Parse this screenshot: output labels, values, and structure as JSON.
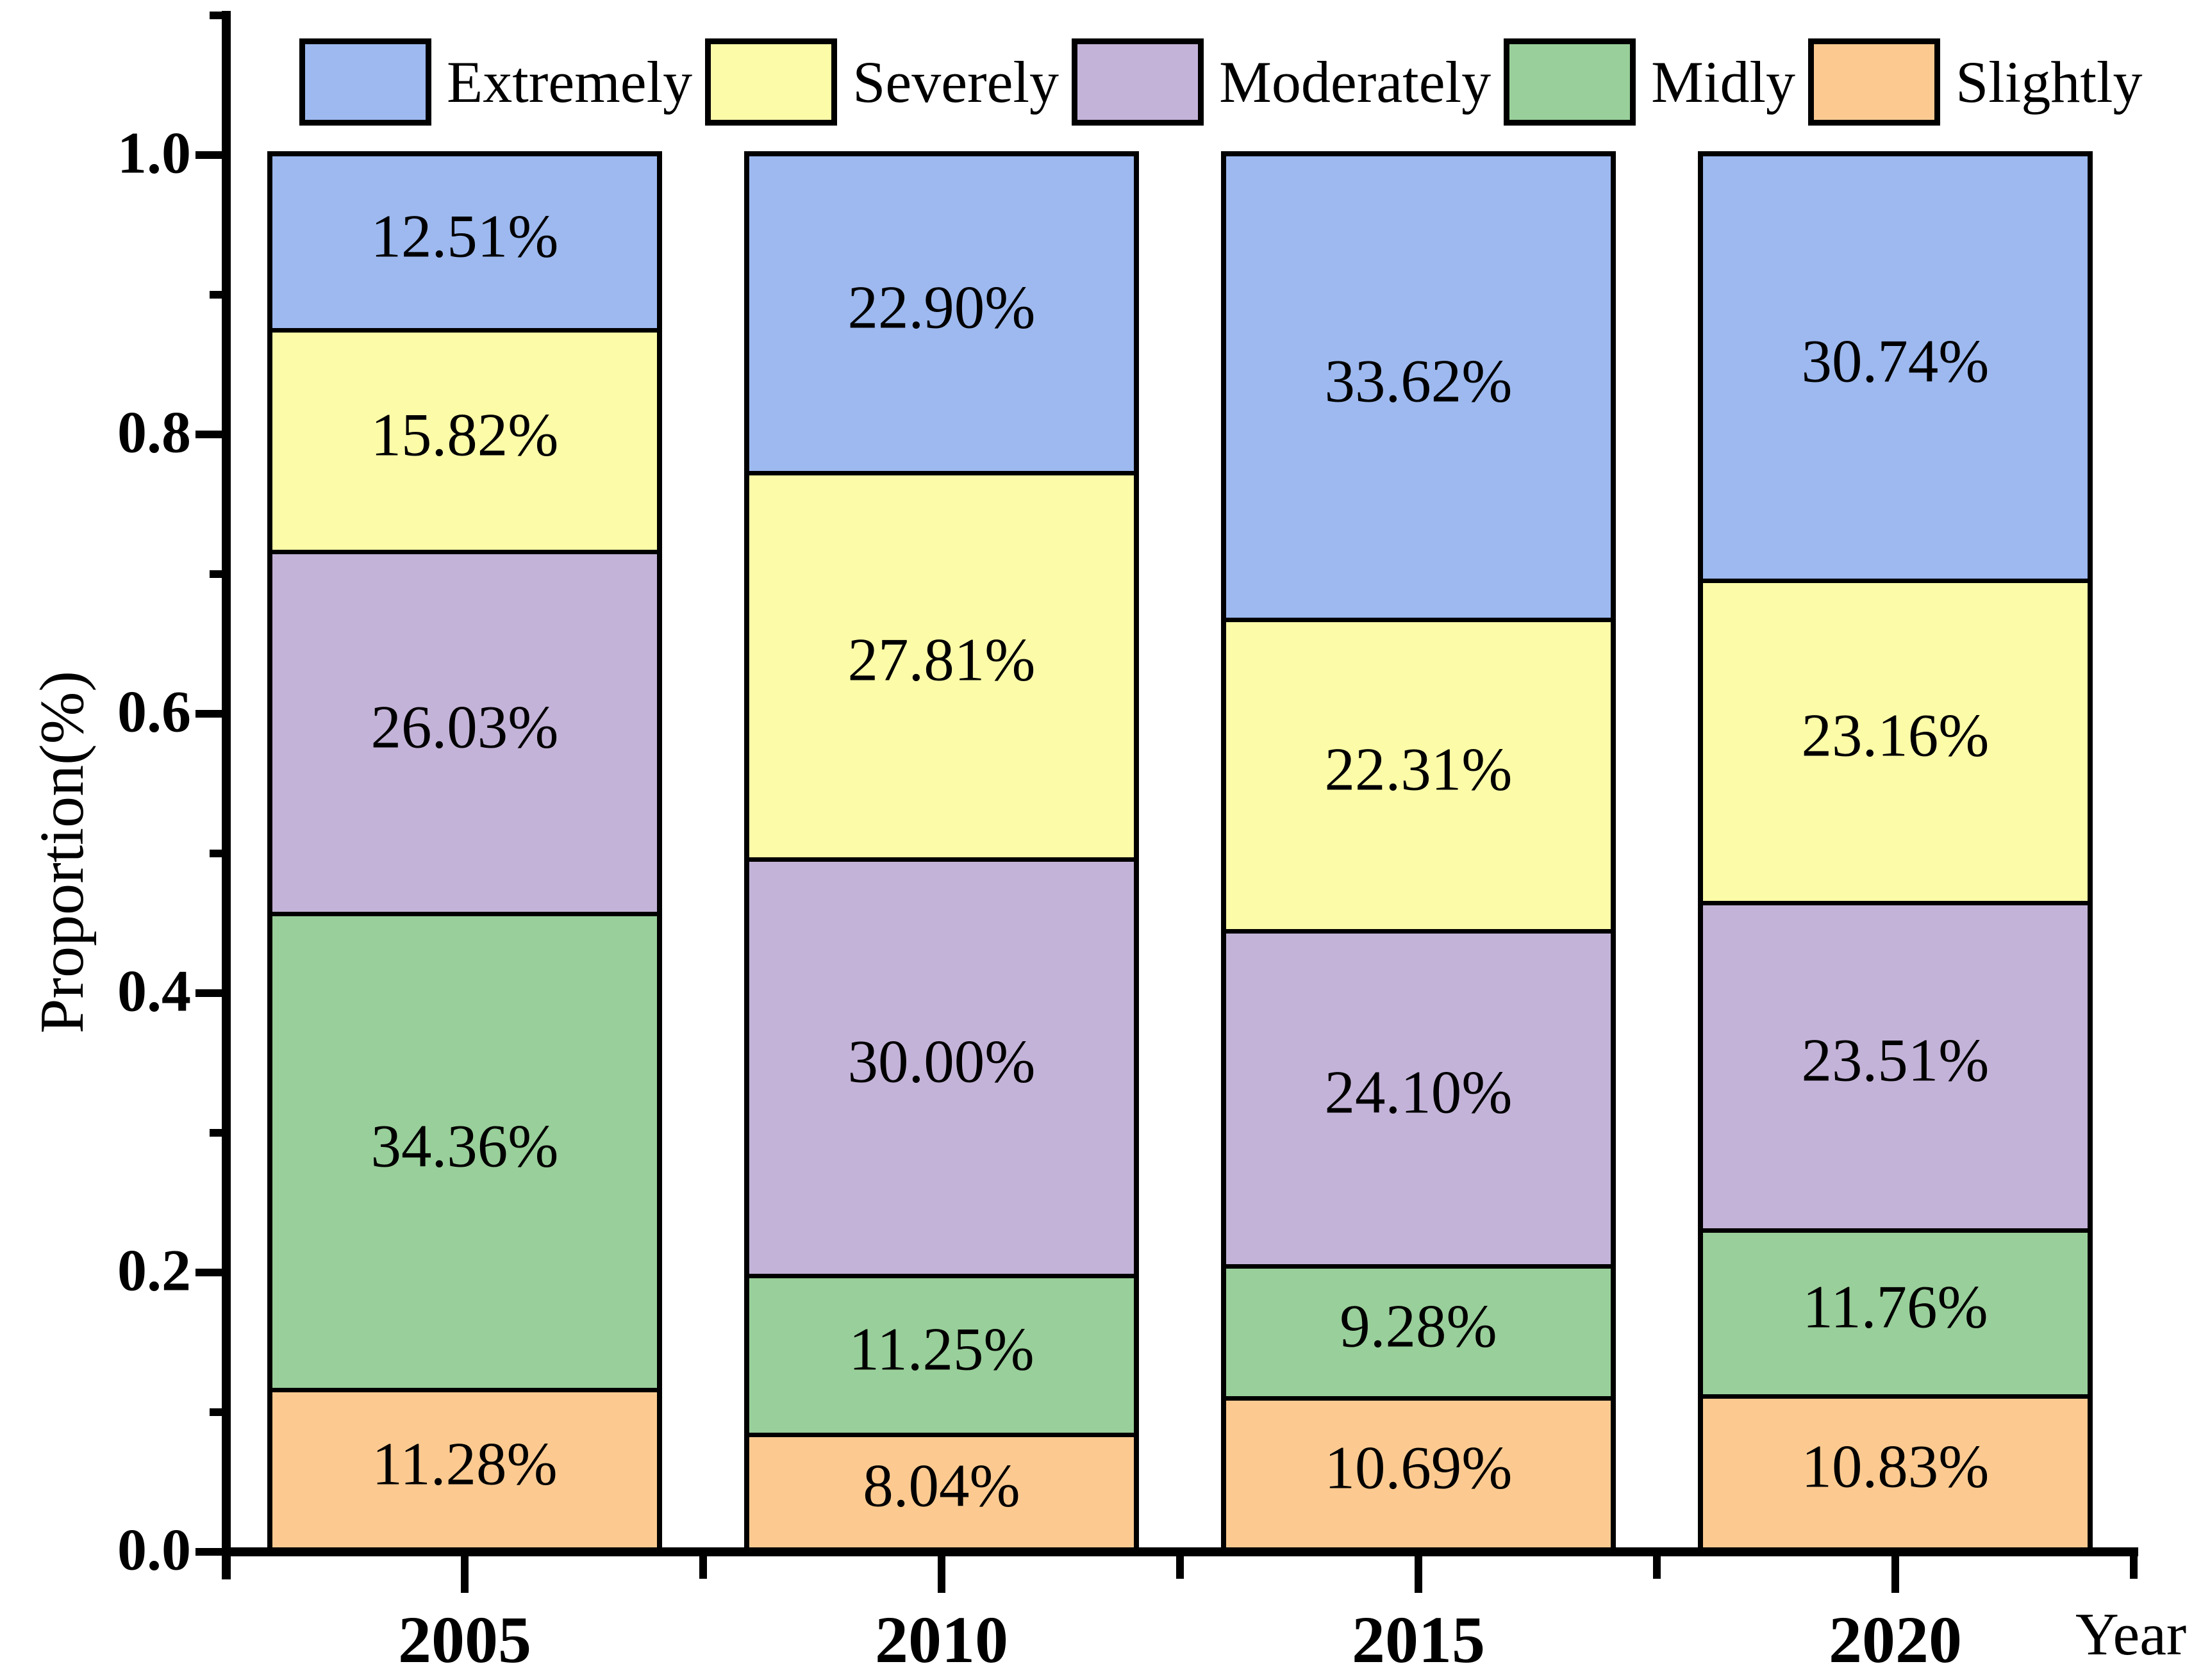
{
  "chart_data": {
    "type": "bar",
    "stacked": true,
    "orientation": "vertical",
    "categories": [
      "2005",
      "2010",
      "2015",
      "2020"
    ],
    "series": [
      {
        "name": "Extremely",
        "color": "#9db9ef",
        "values": [
          12.51,
          22.9,
          33.62,
          30.74
        ],
        "labels": [
          "12.51%",
          "22.90%",
          "33.62%",
          "30.74%"
        ]
      },
      {
        "name": "Severely",
        "color": "#fbfba8",
        "values": [
          15.82,
          27.81,
          22.31,
          23.16
        ],
        "labels": [
          "15.82%",
          "27.81%",
          "22.31%",
          "23.16%"
        ]
      },
      {
        "name": "Moderately",
        "color": "#c4b3d8",
        "values": [
          26.03,
          30.0,
          24.1,
          23.51
        ],
        "labels": [
          "26.03%",
          "30.00%",
          "24.10%",
          "23.51%"
        ]
      },
      {
        "name": "Midly",
        "color": "#99cf9a",
        "values": [
          34.36,
          11.25,
          9.28,
          11.76
        ],
        "labels": [
          "34.36%",
          "11.25%",
          "9.28%",
          "11.76%"
        ]
      },
      {
        "name": "Slightly",
        "color": "#fcca90",
        "values": [
          11.28,
          8.04,
          10.69,
          10.83
        ],
        "labels": [
          "11.28%",
          "8.04%",
          "10.69%",
          "10.83%"
        ]
      }
    ],
    "xlabel": "Year",
    "ylabel": "Proportion(%)",
    "ylim": [
      0,
      1.1
    ],
    "y_major_ticks": [
      {
        "value": 0.0,
        "label": "0.0"
      },
      {
        "value": 0.2,
        "label": "0.2"
      },
      {
        "value": 0.4,
        "label": "0.4"
      },
      {
        "value": 0.6,
        "label": "0.6"
      },
      {
        "value": 0.8,
        "label": "0.8"
      },
      {
        "value": 1.0,
        "label": "1.0"
      }
    ],
    "y_minor_tick_values": [
      0.1,
      0.3,
      0.5,
      0.7,
      0.9,
      1.1
    ],
    "legend_position": "top",
    "grid": false,
    "bar_edge_color": "#000000",
    "text_color": "#000000",
    "background_color": "#ffffff"
  }
}
